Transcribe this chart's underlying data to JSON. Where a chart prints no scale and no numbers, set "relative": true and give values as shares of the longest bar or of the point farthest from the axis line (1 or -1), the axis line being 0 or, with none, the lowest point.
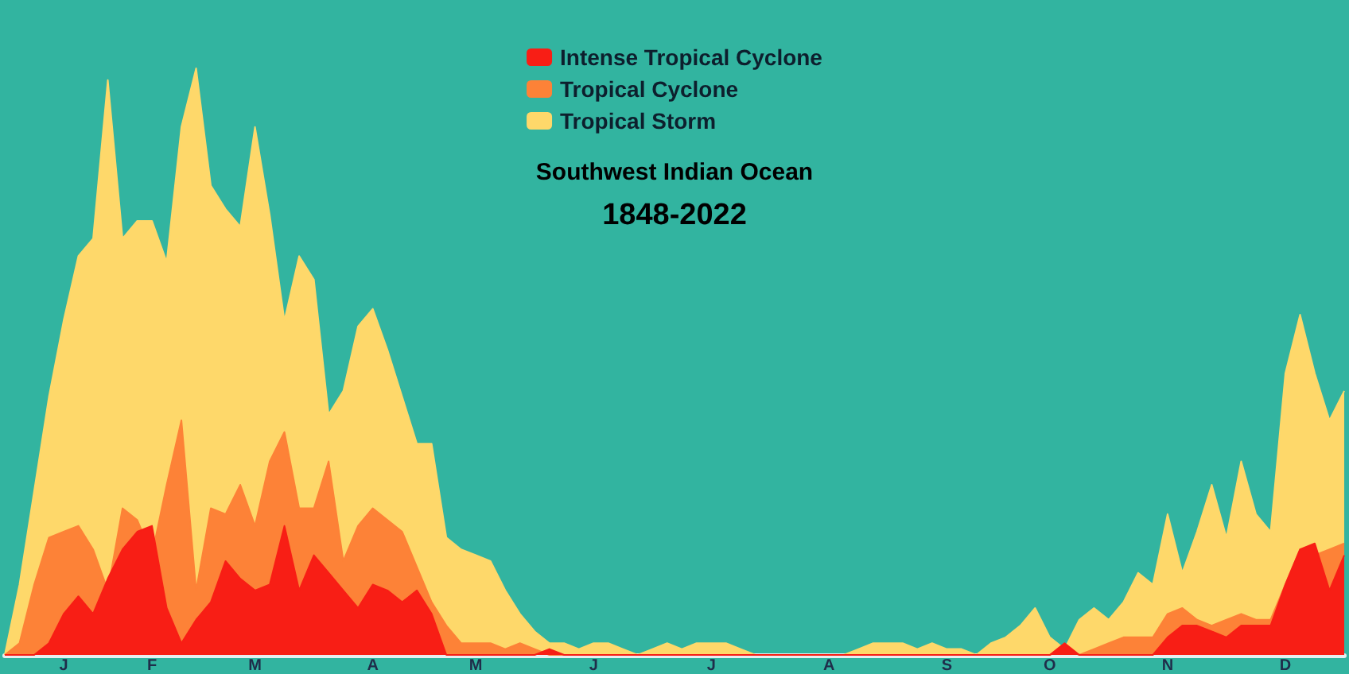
{
  "chart_data": {
    "type": "area",
    "title": "Southwest Indian Ocean",
    "subtitle": "1848-2022",
    "relative": true,
    "legend": "top",
    "grid": false,
    "marker": "none",
    "categories": [
      null,
      null,
      null,
      null,
      "J",
      null,
      null,
      null,
      null,
      null,
      "F",
      null,
      null,
      null,
      null,
      null,
      null,
      "M",
      null,
      null,
      null,
      null,
      null,
      null,
      null,
      "A",
      null,
      null,
      null,
      null,
      null,
      null,
      "M",
      null,
      null,
      null,
      null,
      null,
      null,
      null,
      "J",
      null,
      null,
      null,
      null,
      null,
      null,
      null,
      "J",
      null,
      null,
      null,
      null,
      null,
      null,
      null,
      "A",
      null,
      null,
      null,
      null,
      null,
      null,
      null,
      "S",
      null,
      null,
      null,
      null,
      null,
      null,
      "O",
      null,
      null,
      null,
      null,
      null,
      null,
      null,
      "N",
      null,
      null,
      null,
      null,
      null,
      null,
      null,
      "D",
      null,
      null,
      null,
      null
    ],
    "series": [
      {
        "name": "Intense Tropical Cyclone",
        "color": "#f81e15",
        "values": [
          0,
          0,
          0,
          0.02,
          0.07,
          0.1,
          0.07,
          0.13,
          0.18,
          0.21,
          0.22,
          0.08,
          0.02,
          0.06,
          0.09,
          0.16,
          0.13,
          0.11,
          0.12,
          0.22,
          0.11,
          0.17,
          0.14,
          0.11,
          0.08,
          0.12,
          0.11,
          0.09,
          0.11,
          0.07,
          0,
          0,
          0,
          0,
          0,
          0,
          0,
          0.01,
          0,
          0,
          0,
          0,
          0,
          0,
          0,
          0,
          0,
          0,
          0,
          0,
          0,
          0,
          0,
          0,
          0,
          0,
          0,
          0,
          0,
          0,
          0,
          0,
          0,
          0,
          0,
          0,
          0,
          0,
          0,
          0,
          0,
          0,
          0.02,
          0,
          0,
          0,
          0,
          0,
          0,
          0.03,
          0.05,
          0.05,
          0.04,
          0.03,
          0.05,
          0.05,
          0.05,
          0.12,
          0.18,
          0.19,
          0.11,
          0.17
        ]
      },
      {
        "name": "Tropical Cyclone",
        "color": "#fd8237",
        "values": [
          0,
          0.02,
          0.12,
          0.2,
          0.21,
          0.22,
          0.18,
          0.11,
          0.25,
          0.23,
          0.17,
          0.29,
          0.4,
          0.11,
          0.25,
          0.24,
          0.29,
          0.22,
          0.33,
          0.38,
          0.25,
          0.25,
          0.33,
          0.16,
          0.22,
          0.25,
          0.23,
          0.21,
          0.15,
          0.09,
          0.05,
          0.02,
          0.02,
          0.02,
          0.01,
          0.02,
          0.01,
          0,
          0,
          0,
          0,
          0,
          0,
          0,
          0,
          0,
          0,
          0,
          0,
          0,
          0,
          0,
          0,
          0,
          0,
          0,
          0,
          0,
          0,
          0,
          0,
          0,
          0,
          0,
          0,
          0,
          0,
          0,
          0,
          0,
          0,
          0,
          0.01,
          0,
          0.01,
          0.02,
          0.03,
          0.03,
          0.03,
          0.07,
          0.08,
          0.06,
          0.05,
          0.06,
          0.07,
          0.06,
          0.06,
          0.12,
          0.18,
          0.17,
          0.18,
          0.19
        ]
      },
      {
        "name": "Tropical Storm",
        "color": "#fed86a",
        "values": [
          0,
          0.12,
          0.28,
          0.44,
          0.57,
          0.68,
          0.71,
          0.98,
          0.71,
          0.74,
          0.74,
          0.67,
          0.9,
          1,
          0.8,
          0.76,
          0.73,
          0.9,
          0.75,
          0.57,
          0.68,
          0.64,
          0.41,
          0.45,
          0.56,
          0.59,
          0.52,
          0.44,
          0.36,
          0.36,
          0.2,
          0.18,
          0.17,
          0.16,
          0.11,
          0.07,
          0.04,
          0.02,
          0.02,
          0.01,
          0.02,
          0.02,
          0.01,
          0,
          0.01,
          0.02,
          0.01,
          0.02,
          0.02,
          0.02,
          0.01,
          0,
          0,
          0,
          0,
          0,
          0,
          0,
          0.01,
          0.02,
          0.02,
          0.02,
          0.01,
          0.02,
          0.01,
          0.01,
          0,
          0.02,
          0.03,
          0.05,
          0.08,
          0.03,
          0.01,
          0.06,
          0.08,
          0.06,
          0.09,
          0.14,
          0.12,
          0.24,
          0.14,
          0.21,
          0.29,
          0.2,
          0.33,
          0.24,
          0.21,
          0.48,
          0.58,
          0.48,
          0.4,
          0.45
        ]
      }
    ]
  }
}
